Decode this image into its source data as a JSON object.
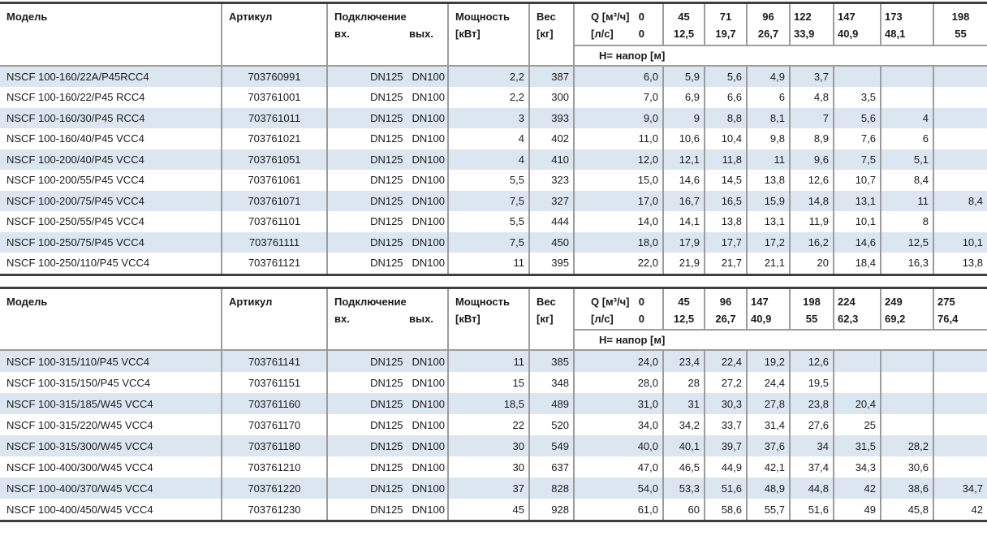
{
  "labels": {
    "model": "Модель",
    "article": "Артикул",
    "connection": "Подключение",
    "conn_in": "вх.",
    "conn_out": "вых.",
    "power_line1": "Мощность",
    "power_line2": "[кВт]",
    "weight_line1": "Вес",
    "weight_line2": "[кг]",
    "q_flow_label": "Q [м³/ч]",
    "q_flow_zero": "0",
    "q_ls_label": "[л/с]",
    "q_ls_zero": "0",
    "head_label": "H= напор [м]"
  },
  "colors": {
    "row_shaded": "#dce6f1",
    "gridline": "#9c9c9c",
    "table_border": "#3f3f3f",
    "text": "#1a1a1a"
  },
  "tables": [
    {
      "q_m3h": [
        "45",
        "71",
        "96",
        "122",
        "147",
        "173",
        "198"
      ],
      "q_ls": [
        "12,5",
        "19,7",
        "26,7",
        "33,9",
        "40,9",
        "48,1",
        "55"
      ],
      "q_align": [
        "center",
        "center",
        "center",
        "left",
        "left",
        "left",
        "center"
      ],
      "rows": [
        {
          "model": "NSCF 100-160/22A/P45RCC4",
          "article": "703760991",
          "dn_in": "DN125",
          "dn_out": "DN100",
          "power": "2,2",
          "weight": "387",
          "h": [
            "6,0",
            "5,9",
            "5,6",
            "4,9",
            "3,7",
            "",
            "",
            ""
          ]
        },
        {
          "model": "NSCF 100-160/22/P45 RCC4",
          "article": "703761001",
          "dn_in": "DN125",
          "dn_out": "DN100",
          "power": "2,2",
          "weight": "300",
          "h": [
            "7,0",
            "6,9",
            "6,6",
            "6",
            "4,8",
            "3,5",
            "",
            ""
          ]
        },
        {
          "model": "NSCF 100-160/30/P45 RCC4",
          "article": "703761011",
          "dn_in": "DN125",
          "dn_out": "DN100",
          "power": "3",
          "weight": "393",
          "h": [
            "9,0",
            "9",
            "8,8",
            "8,1",
            "7",
            "5,6",
            "4",
            ""
          ]
        },
        {
          "model": "NSCF 100-160/40/P45 VCC4",
          "article": "703761021",
          "dn_in": "DN125",
          "dn_out": "DN100",
          "power": "4",
          "weight": "402",
          "h": [
            "11,0",
            "10,6",
            "10,4",
            "9,8",
            "8,9",
            "7,6",
            "6",
            ""
          ]
        },
        {
          "model": "NSCF 100-200/40/P45 VCC4",
          "article": "703761051",
          "dn_in": "DN125",
          "dn_out": "DN100",
          "power": "4",
          "weight": "410",
          "h": [
            "12,0",
            "12,1",
            "11,8",
            "11",
            "9,6",
            "7,5",
            "5,1",
            ""
          ]
        },
        {
          "model": "NSCF 100-200/55/P45 VCC4",
          "article": "703761061",
          "dn_in": "DN125",
          "dn_out": "DN100",
          "power": "5,5",
          "weight": "323",
          "h": [
            "15,0",
            "14,6",
            "14,5",
            "13,8",
            "12,6",
            "10,7",
            "8,4",
            ""
          ]
        },
        {
          "model": "NSCF 100-200/75/P45 VCC4",
          "article": "703761071",
          "dn_in": "DN125",
          "dn_out": "DN100",
          "power": "7,5",
          "weight": "327",
          "h": [
            "17,0",
            "16,7",
            "16,5",
            "15,9",
            "14,8",
            "13,1",
            "11",
            "8,4"
          ]
        },
        {
          "model": "NSCF 100-250/55/P45 VCC4",
          "article": "703761101",
          "dn_in": "DN125",
          "dn_out": "DN100",
          "power": "5,5",
          "weight": "444",
          "h": [
            "14,0",
            "14,1",
            "13,8",
            "13,1",
            "11,9",
            "10,1",
            "8",
            ""
          ]
        },
        {
          "model": "NSCF 100-250/75/P45 VCC4",
          "article": "703761111",
          "dn_in": "DN125",
          "dn_out": "DN100",
          "power": "7,5",
          "weight": "450",
          "h": [
            "18,0",
            "17,9",
            "17,7",
            "17,2",
            "16,2",
            "14,6",
            "12,5",
            "10,1"
          ]
        },
        {
          "model": "NSCF 100-250/110/P45 VCC4",
          "article": "703761121",
          "dn_in": "DN125",
          "dn_out": "DN100",
          "power": "11",
          "weight": "395",
          "h": [
            "22,0",
            "21,9",
            "21,7",
            "21,1",
            "20",
            "18,4",
            "16,3",
            "13,8"
          ]
        }
      ]
    },
    {
      "q_m3h": [
        "45",
        "96",
        "147",
        "198",
        "224",
        "249",
        "275"
      ],
      "q_ls": [
        "12,5",
        "26,7",
        "40,9",
        "55",
        "62,3",
        "69,2",
        "76,4"
      ],
      "q_align": [
        "center",
        "center",
        "left",
        "center",
        "left",
        "left",
        "left"
      ],
      "rows": [
        {
          "model": "NSCF 100-315/110/P45 VCC4",
          "article": "703761141",
          "dn_in": "DN125",
          "dn_out": "DN100",
          "power": "11",
          "weight": "385",
          "h": [
            "24,0",
            "23,4",
            "22,4",
            "19,2",
            "12,6",
            "",
            "",
            ""
          ]
        },
        {
          "model": "NSCF 100-315/150/P45 VCC4",
          "article": "703761151",
          "dn_in": "DN125",
          "dn_out": "DN100",
          "power": "15",
          "weight": "348",
          "h": [
            "28,0",
            "28",
            "27,2",
            "24,4",
            "19,5",
            "",
            "",
            ""
          ]
        },
        {
          "model": "NSCF 100-315/185/W45 VCC4",
          "article": "703761160",
          "dn_in": "DN125",
          "dn_out": "DN100",
          "power": "18,5",
          "weight": "489",
          "h": [
            "31,0",
            "31",
            "30,3",
            "27,8",
            "23,8",
            "20,4",
            "",
            ""
          ]
        },
        {
          "model": "NSCF 100-315/220/W45 VCC4",
          "article": "703761170",
          "dn_in": "DN125",
          "dn_out": "DN100",
          "power": "22",
          "weight": "520",
          "h": [
            "34,0",
            "34,2",
            "33,7",
            "31,4",
            "27,6",
            "25",
            "",
            ""
          ]
        },
        {
          "model": "NSCF 100-315/300/W45 VCC4",
          "article": "703761180",
          "dn_in": "DN125",
          "dn_out": "DN100",
          "power": "30",
          "weight": "549",
          "h": [
            "40,0",
            "40,1",
            "39,7",
            "37,6",
            "34",
            "31,5",
            "28,2",
            ""
          ]
        },
        {
          "model": "NSCF 100-400/300/W45 VCC4",
          "article": "703761210",
          "dn_in": "DN125",
          "dn_out": "DN100",
          "power": "30",
          "weight": "637",
          "h": [
            "47,0",
            "46,5",
            "44,9",
            "42,1",
            "37,4",
            "34,3",
            "30,6",
            ""
          ]
        },
        {
          "model": "NSCF 100-400/370/W45 VCC4",
          "article": "703761220",
          "dn_in": "DN125",
          "dn_out": "DN100",
          "power": "37",
          "weight": "828",
          "h": [
            "54,0",
            "53,3",
            "51,6",
            "48,9",
            "44,8",
            "42",
            "38,6",
            "34,7"
          ]
        },
        {
          "model": "NSCF 100-400/450/W45 VCC4",
          "article": "703761230",
          "dn_in": "DN125",
          "dn_out": "DN100",
          "power": "45",
          "weight": "928",
          "h": [
            "61,0",
            "60",
            "58,6",
            "55,7",
            "51,6",
            "49",
            "45,8",
            "42"
          ]
        }
      ]
    }
  ]
}
